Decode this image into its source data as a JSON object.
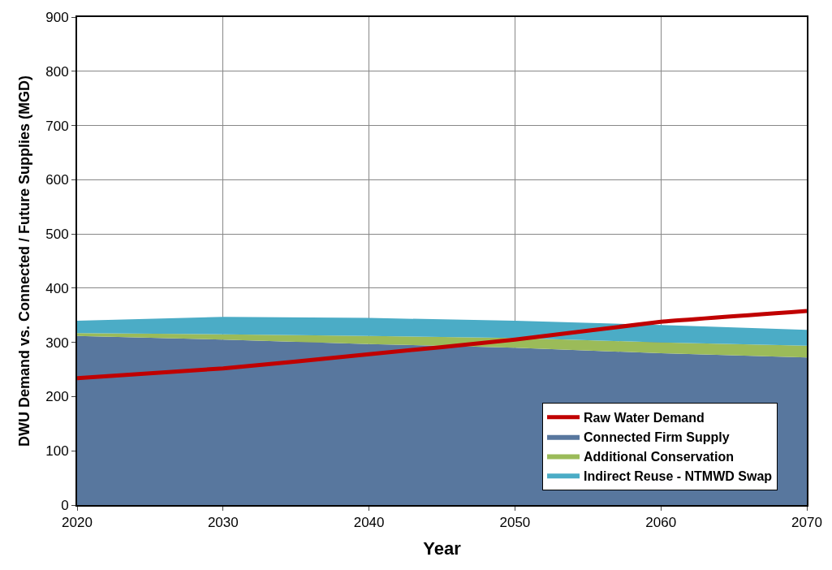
{
  "chart_data": {
    "type": "area",
    "stacked": true,
    "xlabel": "Year",
    "ylabel": "DWU Demand vs. Connected / Future Supplies (MGD)",
    "x": [
      2020,
      2030,
      2040,
      2050,
      2060,
      2070
    ],
    "series": [
      {
        "name": "Connected Firm Supply",
        "color": "#58779e",
        "values": [
          312,
          305,
          297,
          290,
          280,
          272
        ]
      },
      {
        "name": "Additional Conservation",
        "color": "#9bbb59",
        "values": [
          5,
          10,
          15,
          18,
          20,
          22
        ]
      },
      {
        "name": "Indirect Reuse - NTMWD Swap",
        "color": "#4bacc6",
        "values": [
          23,
          32,
          33,
          32,
          32,
          29
        ]
      },
      {
        "name": "Raw Water Demand",
        "type": "line",
        "color": "#c00000",
        "values": [
          234,
          252,
          278,
          305,
          338,
          358
        ]
      }
    ],
    "xlim": [
      2020,
      2070
    ],
    "xticks": [
      2020,
      2030,
      2040,
      2050,
      2060,
      2070
    ],
    "ylim": [
      0,
      900
    ],
    "yticks": [
      0,
      100,
      200,
      300,
      400,
      500,
      600,
      700,
      800,
      900
    ],
    "grid": true,
    "legend": "bottom right",
    "marker": "none"
  }
}
